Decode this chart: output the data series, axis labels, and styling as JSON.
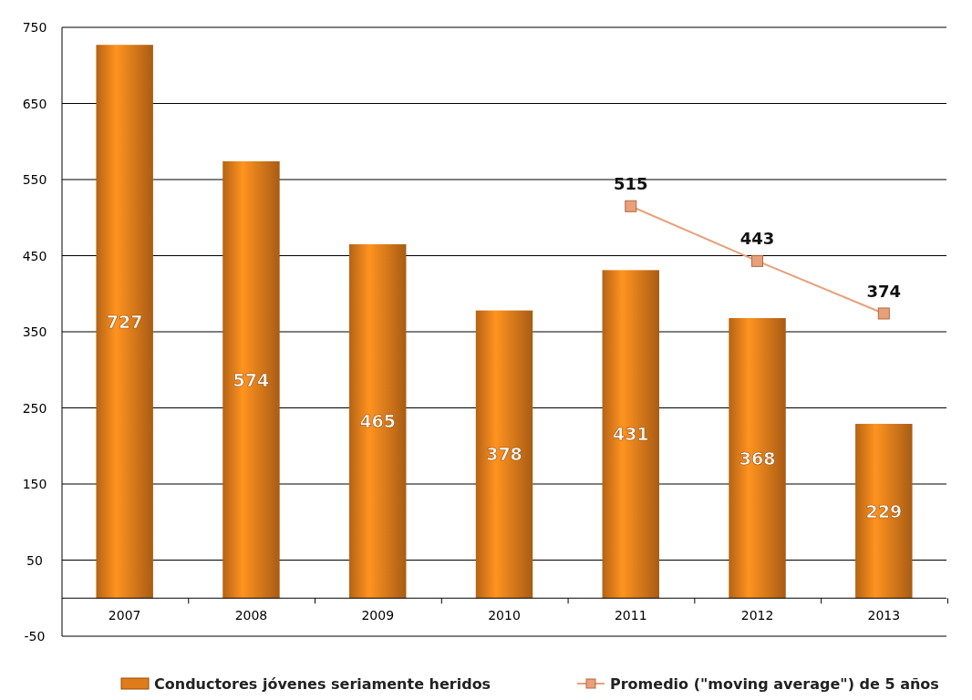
{
  "chart_data": {
    "type": "bar",
    "categories": [
      "2007",
      "2008",
      "2009",
      "2010",
      "2011",
      "2012",
      "2013"
    ],
    "series": [
      {
        "name": "Conductores jóvenes seriamente heridos",
        "color": "#e07b1a",
        "values": [
          727,
          574,
          465,
          378,
          431,
          368,
          229
        ]
      },
      {
        "name": "Promedio (\"moving average\") de 5 años",
        "type": "line",
        "color": "#e8a07a",
        "marker": "square",
        "values": [
          null,
          null,
          null,
          null,
          515,
          443,
          374
        ]
      }
    ],
    "ylim": [
      -50,
      750
    ],
    "yticks": [
      -50,
      50,
      150,
      250,
      350,
      450,
      550,
      650,
      750
    ],
    "grid": "y",
    "data_labels": true,
    "legend": "bottom"
  }
}
